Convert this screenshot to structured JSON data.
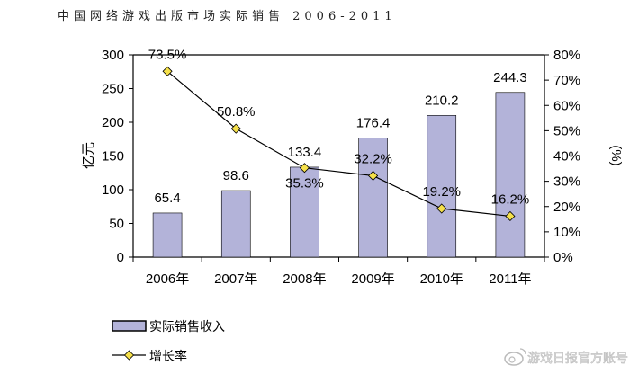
{
  "chart_data": {
    "type": "bar+line",
    "title": "中国网络游戏出版市场实际销售 2006-2011",
    "categories": [
      "2006年",
      "2007年",
      "2008年",
      "2009年",
      "2010年",
      "2011年"
    ],
    "series": [
      {
        "name": "实际销售收入",
        "type": "bar",
        "axis": "left",
        "values": [
          65.4,
          98.6,
          133.4,
          176.4,
          210.2,
          244.3
        ],
        "labels": [
          "65.4",
          "98.6",
          "133.4",
          "176.4",
          "210.2",
          "244.3"
        ],
        "color": "#b3b3d9"
      },
      {
        "name": "增长率",
        "type": "line",
        "axis": "right",
        "values": [
          73.5,
          50.8,
          35.3,
          32.2,
          19.2,
          16.2
        ],
        "labels": [
          "73.5%",
          "50.8%",
          "35.3%",
          "32.2%",
          "19.2%",
          "16.2%"
        ],
        "color": "#f5e04a"
      }
    ],
    "ylabel": "亿元",
    "y2label": "(%)",
    "ylim": [
      0,
      300
    ],
    "y2lim": [
      0,
      80
    ],
    "yticks": [
      "0",
      "50",
      "100",
      "150",
      "200",
      "250",
      "300"
    ],
    "y2ticks": [
      "0%",
      "10%",
      "20%",
      "30%",
      "40%",
      "50%",
      "60%",
      "70%",
      "80%"
    ],
    "grid": false,
    "legend": "bottom-left"
  },
  "watermark": "游戏日报官方账号"
}
